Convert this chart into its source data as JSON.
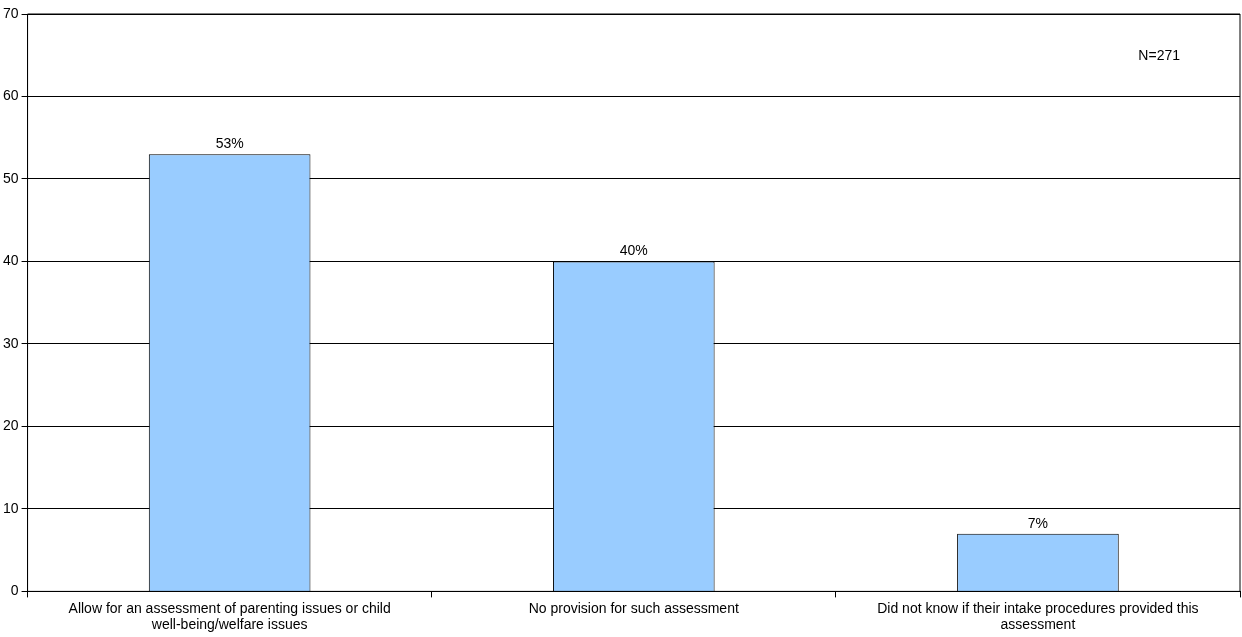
{
  "chart_data": {
    "type": "bar",
    "categories": [
      "Allow for an assessment of parenting issues or child well-being/welfare issues",
      "No provision for such assessment",
      "Did not know if their intake procedures provided this assessment"
    ],
    "values": [
      53,
      40,
      7
    ],
    "value_labels": [
      "53%",
      "40%",
      "7%"
    ],
    "color": "#99ccff",
    "ylim": [
      0,
      70
    ],
    "yticks": [
      0,
      10,
      20,
      30,
      40,
      50,
      60,
      70
    ],
    "grid": "y",
    "annotations": [
      "N=271"
    ]
  }
}
